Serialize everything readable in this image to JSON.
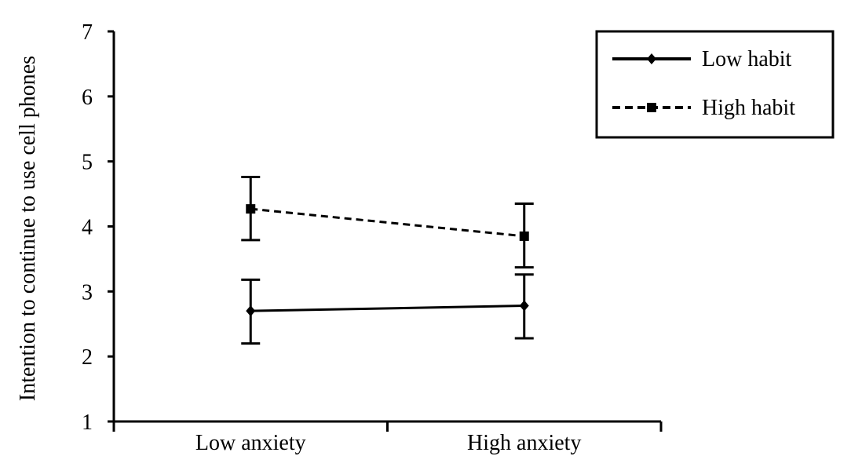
{
  "chart_data": {
    "type": "line",
    "xlabel": "",
    "ylabel": "Intention to continue to use cell phones",
    "categories": [
      "Low anxiety",
      "High anxiety"
    ],
    "ylim": [
      1,
      7
    ],
    "yticks": [
      1,
      2,
      3,
      4,
      5,
      6,
      7
    ],
    "grid": false,
    "legend_position": "top-right",
    "series": [
      {
        "name": "Low habit",
        "values": [
          2.7,
          2.78
        ],
        "error_low": [
          2.2,
          2.28
        ],
        "error_high": [
          3.18,
          3.26
        ],
        "line_style": "solid",
        "marker": "diamond",
        "color": "#000000"
      },
      {
        "name": "High habit",
        "values": [
          4.27,
          3.85
        ],
        "error_low": [
          3.79,
          3.37
        ],
        "error_high": [
          4.76,
          4.35
        ],
        "line_style": "dashed",
        "marker": "square",
        "color": "#000000"
      }
    ]
  }
}
